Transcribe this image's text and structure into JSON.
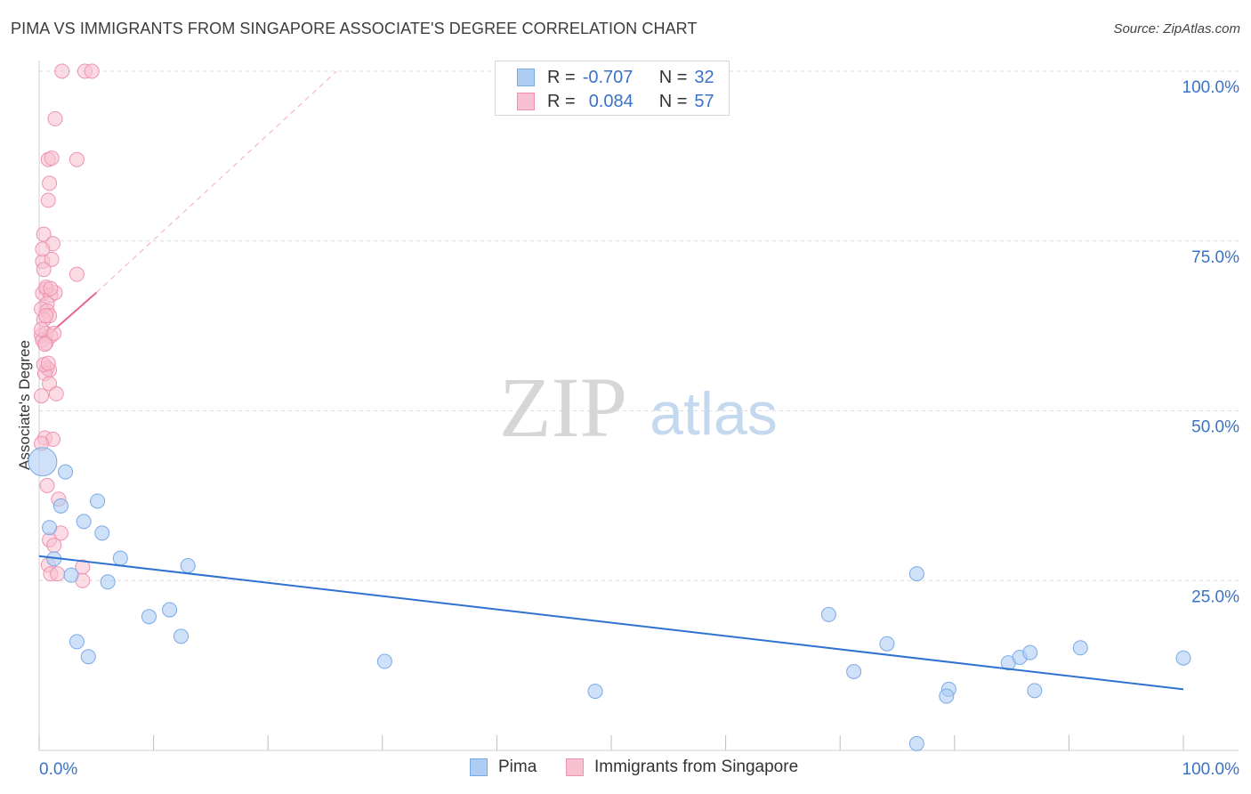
{
  "title": "PIMA VS IMMIGRANTS FROM SINGAPORE ASSOCIATE'S DEGREE CORRELATION CHART",
  "source": "Source: ZipAtlas.com",
  "watermark": {
    "zip": "ZIP",
    "atlas": "atlas"
  },
  "legend": {
    "pima": {
      "r_label": "R =",
      "r_value": "-0.707",
      "n_label": "N =",
      "n_value": "32"
    },
    "singapore": {
      "r_label": "R =",
      "r_value": "0.084",
      "n_label": "N =",
      "n_value": "57"
    }
  },
  "bottom_legend": {
    "pima": "Pima",
    "singapore": "Immigrants from Singapore"
  },
  "colors": {
    "pima_fill": "#aecdf3",
    "pima_stroke": "#7aaae6",
    "pima_line": "#2f72d0",
    "sing_fill": "#f8c0d0",
    "sing_stroke": "#ee94b0",
    "sing_line": "#e8668e",
    "axis_text": "#3a72c8",
    "grid": "#dddddd"
  },
  "chart_data": {
    "type": "scatter",
    "title": "PIMA VS IMMIGRANTS FROM SINGAPORE ASSOCIATE'S DEGREE CORRELATION CHART",
    "xlabel": "",
    "ylabel": "Associate's Degree",
    "xlim": [
      0,
      100
    ],
    "ylim": [
      0,
      100
    ],
    "x_tick_labels": [
      "0.0%",
      "100.0%"
    ],
    "y_tick_labels": [
      {
        "value": 100,
        "label": "100.0%"
      },
      {
        "value": 75,
        "label": "75.0%"
      },
      {
        "value": 50,
        "label": "50.0%"
      },
      {
        "value": 25,
        "label": "25.0%"
      }
    ],
    "series": [
      {
        "name": "Pima",
        "color": "#aecdf3",
        "points": [
          [
            0.3,
            42.5
          ],
          [
            2.3,
            41.0
          ],
          [
            5.1,
            36.7
          ],
          [
            1.9,
            36.0
          ],
          [
            3.9,
            33.7
          ],
          [
            0.9,
            32.8
          ],
          [
            5.5,
            32.0
          ],
          [
            1.3,
            28.2
          ],
          [
            7.1,
            28.3
          ],
          [
            13.0,
            27.2
          ],
          [
            2.8,
            25.8
          ],
          [
            6.0,
            24.8
          ],
          [
            9.6,
            19.7
          ],
          [
            11.4,
            20.7
          ],
          [
            12.4,
            16.8
          ],
          [
            3.3,
            16.0
          ],
          [
            4.3,
            13.8
          ],
          [
            30.2,
            13.1
          ],
          [
            48.6,
            8.7
          ],
          [
            69.0,
            20.0
          ],
          [
            76.7,
            26.0
          ],
          [
            71.2,
            11.6
          ],
          [
            74.1,
            15.7
          ],
          [
            79.5,
            9.0
          ],
          [
            79.3,
            8.0
          ],
          [
            84.7,
            12.9
          ],
          [
            85.7,
            13.7
          ],
          [
            86.6,
            14.4
          ],
          [
            87.0,
            8.8
          ],
          [
            91.0,
            15.1
          ],
          [
            100.0,
            13.6
          ],
          [
            76.7,
            1.0
          ]
        ],
        "trend": {
          "x": [
            0,
            100
          ],
          "y": [
            28.6,
            9.0
          ]
        }
      },
      {
        "name": "Immigrants from Singapore",
        "color": "#f8c0d0",
        "points": [
          [
            2.0,
            100.0
          ],
          [
            4.0,
            100.0
          ],
          [
            4.6,
            100.0
          ],
          [
            1.4,
            93.0
          ],
          [
            0.8,
            87.0
          ],
          [
            1.1,
            87.2
          ],
          [
            3.3,
            87.0
          ],
          [
            0.9,
            83.5
          ],
          [
            0.8,
            81.0
          ],
          [
            0.4,
            76.0
          ],
          [
            1.2,
            74.6
          ],
          [
            0.3,
            72.0
          ],
          [
            1.1,
            72.3
          ],
          [
            0.4,
            70.8
          ],
          [
            3.3,
            70.1
          ],
          [
            0.6,
            67.9
          ],
          [
            0.3,
            67.3
          ],
          [
            1.0,
            67.0
          ],
          [
            1.4,
            67.4
          ],
          [
            0.7,
            65.8
          ],
          [
            0.2,
            65.0
          ],
          [
            0.7,
            64.7
          ],
          [
            0.9,
            64.0
          ],
          [
            0.4,
            63.4
          ],
          [
            0.2,
            61.1
          ],
          [
            0.6,
            61.4
          ],
          [
            1.0,
            61.0
          ],
          [
            0.3,
            60.4
          ],
          [
            0.6,
            60.0
          ],
          [
            0.7,
            56.3
          ],
          [
            0.9,
            56.0
          ],
          [
            0.5,
            55.5
          ],
          [
            0.9,
            54.0
          ],
          [
            0.2,
            52.2
          ],
          [
            1.5,
            52.5
          ],
          [
            0.5,
            46.0
          ],
          [
            1.2,
            45.8
          ],
          [
            0.2,
            45.2
          ],
          [
            0.7,
            39.0
          ],
          [
            1.7,
            37.0
          ],
          [
            1.9,
            32.0
          ],
          [
            0.9,
            31.0
          ],
          [
            1.3,
            30.2
          ],
          [
            0.8,
            27.3
          ],
          [
            3.8,
            27.0
          ],
          [
            1.0,
            26.0
          ],
          [
            1.6,
            26.0
          ],
          [
            3.8,
            25.0
          ],
          [
            0.4,
            56.8
          ],
          [
            0.6,
            68.2
          ],
          [
            0.2,
            62.0
          ],
          [
            0.8,
            57.0
          ],
          [
            1.3,
            61.4
          ],
          [
            0.5,
            59.8
          ],
          [
            0.3,
            73.8
          ],
          [
            1.0,
            68.0
          ],
          [
            0.6,
            64.0
          ]
        ],
        "trend": {
          "x": [
            0,
            5
          ],
          "y": [
            60.0,
            67.4
          ],
          "dashed_extension": {
            "x": [
              5,
              26
            ],
            "y": [
              67.4,
              100
            ]
          }
        }
      }
    ]
  }
}
